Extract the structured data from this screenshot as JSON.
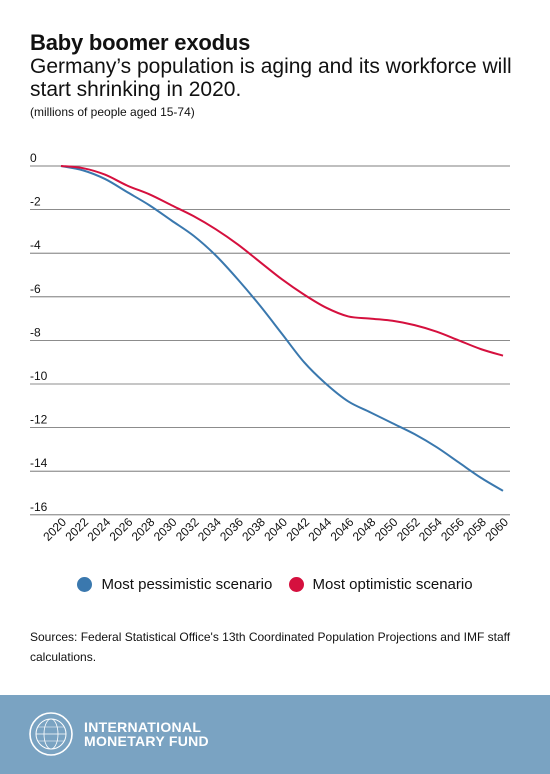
{
  "header": {
    "title": "Baby boomer exodus",
    "subtitle": "Germany’s population is aging and its workforce will start shrinking in 2020.",
    "unit_note": "(millions of people aged 15-74)"
  },
  "chart_data": {
    "type": "line",
    "x": [
      2020,
      2022,
      2024,
      2026,
      2028,
      2030,
      2032,
      2034,
      2036,
      2038,
      2040,
      2042,
      2044,
      2046,
      2048,
      2050,
      2052,
      2054,
      2056,
      2058,
      2060
    ],
    "x_tick_labels": [
      "2020",
      "2022",
      "2024",
      "2026",
      "2028",
      "2030",
      "2032",
      "2034",
      "2036",
      "2038",
      "2040",
      "2042",
      "2044",
      "2046",
      "2048",
      "2050",
      "2052",
      "2054",
      "2056",
      "2058",
      "2060"
    ],
    "y_tick_labels": [
      "0",
      "-2",
      "-4",
      "-6",
      "-8",
      "-10",
      "-12",
      "-14",
      "-16"
    ],
    "ylim": [
      -16,
      0
    ],
    "grid": true,
    "legend_position": "bottom",
    "series": [
      {
        "name": "Most pessimistic scenario",
        "color": "#3a78ae",
        "values": [
          0,
          -0.2,
          -0.6,
          -1.2,
          -1.8,
          -2.5,
          -3.2,
          -4.1,
          -5.2,
          -6.4,
          -7.7,
          -9.0,
          -10.0,
          -10.8,
          -11.3,
          -11.8,
          -12.3,
          -12.9,
          -13.6,
          -14.3,
          -14.9
        ]
      },
      {
        "name": "Most optimistic scenario",
        "color": "#d5103e",
        "values": [
          0,
          -0.1,
          -0.4,
          -0.9,
          -1.3,
          -1.8,
          -2.3,
          -2.9,
          -3.6,
          -4.4,
          -5.2,
          -5.9,
          -6.5,
          -6.9,
          -7.0,
          -7.1,
          -7.3,
          -7.6,
          -8.0,
          -8.4,
          -8.7
        ]
      }
    ]
  },
  "legend": {
    "items": [
      {
        "label": "Most pessimistic scenario",
        "color": "#3a78ae"
      },
      {
        "label": "Most optimistic scenario",
        "color": "#d5103e"
      }
    ]
  },
  "source": "Sources: Federal Statistical Office's 13th Coordinated Population Projections and IMF staff calculations.",
  "footer": {
    "org_line1": "INTERNATIONAL",
    "org_line2": "MONETARY FUND",
    "background": "#7aa3c2"
  }
}
